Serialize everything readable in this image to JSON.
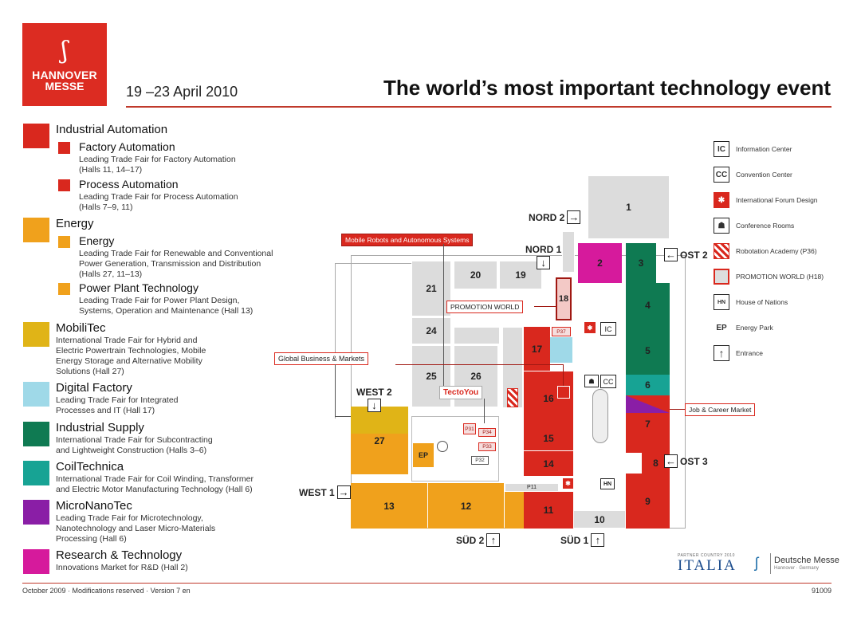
{
  "header": {
    "logo_line1": "HANNOVER",
    "logo_line2": "MESSE",
    "dates": "19 –23 April 2010",
    "headline": "The world’s most important technology event"
  },
  "colors": {
    "industrial_automation": "#d9281e",
    "energy": "#f0a11c",
    "mobilitec": "#e0b417",
    "digital_factory": "#9fd9e8",
    "industrial_supply": "#0f7a52",
    "coiltechnica": "#17a394",
    "micronanotec": "#8a1ea6",
    "research": "#d61a9c"
  },
  "legend": {
    "industrial_automation": {
      "title": "Industrial Automation",
      "factory": {
        "title": "Factory Automation",
        "line1": "Leading Trade Fair for Factory Automation",
        "line2": "(Halls 11, 14–17)"
      },
      "process": {
        "title": "Process Automation",
        "line1": "Leading Trade Fair for Process Automation",
        "line2": "(Halls 7–9, 11)"
      }
    },
    "energy": {
      "title": "Energy",
      "energy": {
        "title": "Energy",
        "line1": "Leading Trade Fair for Renewable and Conventional",
        "line2": "Power Generation, Transmission and Distribution",
        "line3": "(Halls 27, 11–13)"
      },
      "power": {
        "title": "Power Plant Technology",
        "line1": "Leading Trade Fair for Power Plant Design,",
        "line2": "Systems, Operation and Maintenance (Hall 13)"
      }
    },
    "mobilitec": {
      "title": "MobiliTec",
      "line1": "International Trade Fair for Hybrid and",
      "line2": "Electric Powertrain Technologies, Mobile",
      "line3": "Energy Storage and Alternative Mobility",
      "line4": "Solutions (Hall 27)"
    },
    "digital_factory": {
      "title": "Digital Factory",
      "line1": "Leading Trade Fair for Integrated",
      "line2": "Processes and IT (Hall 17)"
    },
    "industrial_supply": {
      "title": "Industrial Supply",
      "line1": "International Trade Fair for Subcontracting",
      "line2": "and Lightweight Construction (Halls 3–6)"
    },
    "coiltechnica": {
      "title": "CoilTechnica",
      "line1": "International Trade Fair for Coil Winding, Transformer",
      "line2": "and Electric Motor Manufacturing Technology (Hall 6)"
    },
    "micronanotec": {
      "title": "MicroNanoTec",
      "line1": "Leading Trade Fair for Microtechnology,",
      "line2": "Nanotechnology and Laser Micro-Materials",
      "line3": "Processing (Hall 6)"
    },
    "research": {
      "title": "Research & Technology",
      "line1": "Innovations Market for R&D (Hall 2)"
    }
  },
  "key": {
    "ic": {
      "icon": "IC",
      "label": "Information Center"
    },
    "cc": {
      "icon": "CC",
      "label": "Convention Center"
    },
    "forum": {
      "label": "International Forum Design"
    },
    "conference": {
      "label": "Conference Rooms"
    },
    "robotation": {
      "label": "Robotation Academy (P36)"
    },
    "promotion": {
      "label": "PROMOTION WORLD (H18)"
    },
    "nations": {
      "icon": "HN",
      "label": "House of Nations"
    },
    "energypark": {
      "icon": "EP",
      "label": "Energy Park"
    },
    "entrance": {
      "label": "Entrance"
    }
  },
  "map": {
    "halls": {
      "h1": "1",
      "h2": "2",
      "h3": "3",
      "h4": "4",
      "h5": "5",
      "h6": "6",
      "h7": "7",
      "h8": "8",
      "h9": "9",
      "h10": "10",
      "h11": "11",
      "h12": "12",
      "h13": "13",
      "h14": "14",
      "h15": "15",
      "h16": "16",
      "h17": "17",
      "h18": "18",
      "h19": "19",
      "h20": "20",
      "h21": "21",
      "h24": "24",
      "h25": "25",
      "h26": "26",
      "h27": "27"
    },
    "pavilions": {
      "p11": "P11",
      "p31": "P31",
      "p32": "P32",
      "p33": "P33",
      "p34": "P34",
      "p37": "P37",
      "ep": "EP",
      "ic": "IC",
      "cc": "CC",
      "hn": "HN"
    },
    "entrances": {
      "nord2": "NORD 2",
      "nord1": "NORD 1",
      "ost2": "OST 2",
      "ost3": "OST 3",
      "west2": "WEST 2",
      "west1": "WEST 1",
      "sued2": "SÜD 2",
      "sued1": "SÜD 1"
    },
    "callouts": {
      "mobile_robots": "Mobile Robots and Autonomous Systems",
      "promotion_world": "PROMOTION WORLD",
      "global_business": "Global Business & Markets",
      "tectoyou": "TectoYou",
      "job_career": "Job & Career Market"
    }
  },
  "partner": {
    "caption": "PARTNER COUNTRY 2010",
    "country": "ITALIA"
  },
  "organizer": {
    "name": "Deutsche Messe",
    "sub": "Hannover · Germany"
  },
  "footer": {
    "left": "October 2009 · Modifications reserved · Version 7 en",
    "right": "91009"
  }
}
